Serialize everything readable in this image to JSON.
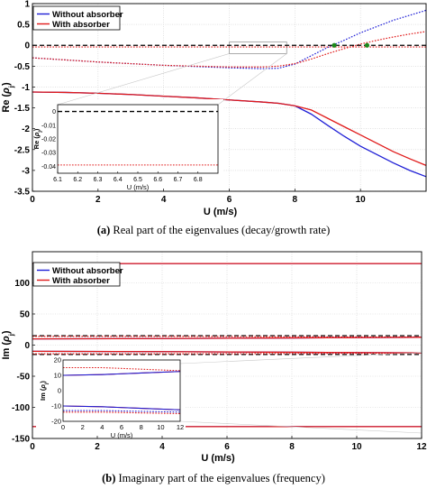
{
  "colors": {
    "blue": "#1f1fd6",
    "red": "#e01a1a",
    "green": "#1b8a1b",
    "black": "#000000",
    "grid": "#cfcfcf",
    "guide": "#c8c8c8"
  },
  "captions": {
    "a_tag": "(a)",
    "a_text": " Real part of the eigenvalues (decay/growth rate)",
    "b_tag": "(b)",
    "b_text": " Imaginary part of the eigenvalues (frequency)"
  },
  "chart_data": [
    {
      "type": "line",
      "xlabel": "U (m/s)",
      "ylabel": "Re (ρj)",
      "xlim": [
        0,
        12
      ],
      "ylim": [
        -3.5,
        1
      ],
      "xticks": [
        "0",
        "2",
        "4",
        "6",
        "8",
        "10"
      ],
      "yticks": [
        "1",
        "0.5",
        "0",
        "-0.5",
        "-1",
        "-1.5",
        "-2",
        "-2.5",
        "-3",
        "-3.5"
      ],
      "grid": true,
      "legend": {
        "position": "top-left",
        "entries": [
          "Without absorber",
          "With absorber"
        ]
      },
      "series": [
        {
          "name": "Without absorber",
          "style": "solid",
          "color": "blue",
          "x": [
            0,
            1,
            2,
            3,
            4,
            5,
            6,
            7,
            7.5,
            8,
            8.5,
            9,
            9.5,
            10,
            10.5,
            11,
            11.5,
            12
          ],
          "y": [
            -1.12,
            -1.13,
            -1.15,
            -1.18,
            -1.22,
            -1.26,
            -1.31,
            -1.36,
            -1.39,
            -1.45,
            -1.65,
            -1.92,
            -2.18,
            -2.42,
            -2.62,
            -2.82,
            -3.0,
            -3.15
          ]
        },
        {
          "name": "Without absorber",
          "style": "dotted",
          "color": "blue",
          "x": [
            0,
            1,
            2,
            3,
            4,
            5,
            6,
            7,
            7.5,
            8,
            8.5,
            9,
            9.5,
            10,
            10.5,
            11,
            11.5,
            12
          ],
          "y": [
            -0.3,
            -0.35,
            -0.4,
            -0.44,
            -0.48,
            -0.51,
            -0.54,
            -0.56,
            -0.55,
            -0.45,
            -0.25,
            -0.05,
            0.12,
            0.3,
            0.45,
            0.6,
            0.72,
            0.84
          ]
        },
        {
          "name": "With absorber",
          "style": "solid",
          "color": "red",
          "x": [
            0,
            1,
            2,
            3,
            4,
            5,
            6,
            7,
            7.5,
            8,
            8.5,
            9,
            9.5,
            10,
            10.5,
            11,
            11.5,
            12
          ],
          "y": [
            -1.12,
            -1.13,
            -1.15,
            -1.18,
            -1.22,
            -1.26,
            -1.31,
            -1.36,
            -1.39,
            -1.45,
            -1.55,
            -1.75,
            -1.95,
            -2.15,
            -2.35,
            -2.55,
            -2.72,
            -2.88
          ]
        },
        {
          "name": "With absorber",
          "style": "dotted",
          "color": "red",
          "x": [
            0,
            1,
            2,
            3,
            4,
            5,
            6,
            7,
            7.5,
            8,
            8.5,
            9,
            9.5,
            10,
            10.5,
            11,
            11.5,
            12
          ],
          "y": [
            -0.3,
            -0.35,
            -0.4,
            -0.44,
            -0.48,
            -0.5,
            -0.52,
            -0.52,
            -0.5,
            -0.44,
            -0.33,
            -0.2,
            -0.08,
            0.03,
            0.12,
            0.2,
            0.27,
            0.33
          ]
        },
        {
          "name": "Without absorber",
          "style": "dashed",
          "color": "black",
          "x": [
            0,
            12
          ],
          "y": [
            0,
            0
          ]
        },
        {
          "name": "With absorber",
          "style": "dotted",
          "color": "red",
          "x": [
            0,
            12
          ],
          "y": [
            -0.04,
            -0.04
          ]
        }
      ],
      "markers": [
        {
          "x": 9.2,
          "y": 0
        },
        {
          "x": 10.2,
          "y": 0
        }
      ],
      "zoom_box": {
        "x": [
          6,
          7
        ],
        "y": [
          -0.2,
          0.08
        ]
      },
      "inset": {
        "xlabel": "U (m/s)",
        "ylabel": "Re (ρj)",
        "xlim": [
          6.1,
          6.9
        ],
        "ylim": [
          -0.045,
          0.005
        ],
        "xticks": [
          "6.1",
          "6.2",
          "6.3",
          "6.4",
          "6.5",
          "6.6",
          "6.7",
          "6.8"
        ],
        "yticks": [
          "0",
          "-0.01",
          "-0.02",
          "-0.03",
          "-0.04"
        ],
        "series": [
          {
            "style": "dashed",
            "color": "black",
            "y": 0
          },
          {
            "style": "dotted",
            "color": "red",
            "y": -0.039
          }
        ]
      }
    },
    {
      "type": "line",
      "xlabel": "U (m/s)",
      "ylabel": "Im (ρj)",
      "xlim": [
        0,
        12
      ],
      "ylim": [
        -150,
        150
      ],
      "xticks": [
        "0",
        "2",
        "4",
        "6",
        "8",
        "10",
        "12"
      ],
      "yticks": [
        "100",
        "50",
        "0",
        "-50",
        "-100",
        "-150"
      ],
      "grid": true,
      "legend": {
        "position": "top-left",
        "entries": [
          "Without absorber",
          "With absorber"
        ]
      },
      "series": [
        {
          "name": "Without absorber",
          "style": "solid",
          "color": "blue",
          "x": [
            0,
            12
          ],
          "y": [
            131,
            131
          ]
        },
        {
          "name": "With absorber",
          "style": "solid",
          "color": "red",
          "x": [
            0,
            12
          ],
          "y": [
            131,
            131
          ]
        },
        {
          "name": "Without absorber",
          "style": "solid",
          "color": "blue",
          "x": [
            0,
            12
          ],
          "y": [
            -131,
            -131
          ]
        },
        {
          "name": "With absorber",
          "style": "solid",
          "color": "red",
          "x": [
            0,
            12
          ],
          "y": [
            -131,
            -131
          ]
        },
        {
          "name": "Without absorber",
          "style": "solid",
          "color": "blue",
          "x": [
            0,
            4,
            8,
            10,
            12
          ],
          "y": [
            10,
            10.5,
            11.5,
            12,
            12.5
          ]
        },
        {
          "name": "With absorber",
          "style": "solid",
          "color": "red",
          "x": [
            0,
            4,
            8,
            10,
            12
          ],
          "y": [
            10,
            10.5,
            11.5,
            12,
            12.5
          ]
        },
        {
          "name": "Without absorber",
          "style": "dashed",
          "color": "black",
          "x": [
            0,
            12
          ],
          "y": [
            15,
            15
          ]
        },
        {
          "name": "With absorber",
          "style": "dotted",
          "color": "red",
          "x": [
            0,
            4,
            8,
            10,
            12
          ],
          "y": [
            14,
            14,
            13.5,
            13.2,
            13
          ]
        },
        {
          "name": "Without absorber",
          "style": "solid",
          "color": "blue",
          "x": [
            0,
            4,
            8,
            10,
            12
          ],
          "y": [
            -10,
            -10.5,
            -11.5,
            -12,
            -12.5
          ]
        },
        {
          "name": "With absorber",
          "style": "solid",
          "color": "red",
          "x": [
            0,
            4,
            8,
            10,
            12
          ],
          "y": [
            -10,
            -10.5,
            -11.5,
            -12,
            -12.5
          ]
        },
        {
          "name": "Without absorber",
          "style": "dashed",
          "color": "black",
          "x": [
            0,
            12
          ],
          "y": [
            -15,
            -15
          ]
        },
        {
          "name": "With absorber",
          "style": "dotted",
          "color": "red",
          "x": [
            0,
            4,
            8,
            10,
            12
          ],
          "y": [
            -14,
            -14,
            -13.5,
            -13.2,
            -13
          ]
        }
      ],
      "inset": {
        "xlabel": "U (m/s)",
        "ylabel": "Im (ρj)",
        "xlim": [
          0,
          12
        ],
        "ylim": [
          -20,
          20
        ],
        "xticks": [
          "0",
          "2",
          "4",
          "6",
          "8",
          "10",
          "12"
        ],
        "yticks": [
          "20",
          "10",
          "0",
          "-10",
          "-20"
        ],
        "series": [
          {
            "style": "dotted",
            "color": "red",
            "x": [
              0,
              4,
              8,
              12
            ],
            "y": [
              15,
              15,
              14,
              13
            ]
          },
          {
            "style": "solid",
            "color": "red",
            "x": [
              0,
              4,
              8,
              12
            ],
            "y": [
              10,
              10.5,
              11.5,
              12.5
            ]
          },
          {
            "style": "solid",
            "color": "blue",
            "x": [
              0,
              4,
              8,
              12
            ],
            "y": [
              10,
              10.5,
              11.5,
              12.5
            ]
          },
          {
            "style": "dotted",
            "color": "blue",
            "x": [
              0,
              4,
              8,
              12
            ],
            "y": [
              -13,
              -13,
              -13.5,
              -14
            ]
          },
          {
            "style": "dotted",
            "color": "red",
            "x": [
              0,
              4,
              8,
              12
            ],
            "y": [
              -14,
              -14,
              -14.5,
              -15
            ]
          },
          {
            "style": "solid",
            "color": "red",
            "x": [
              0,
              4,
              8,
              12
            ],
            "y": [
              -10,
              -10.5,
              -11.5,
              -12.5
            ]
          },
          {
            "style": "solid",
            "color": "blue",
            "x": [
              0,
              4,
              8,
              12
            ],
            "y": [
              -10,
              -10.5,
              -11.5,
              -12.5
            ]
          }
        ]
      }
    }
  ]
}
